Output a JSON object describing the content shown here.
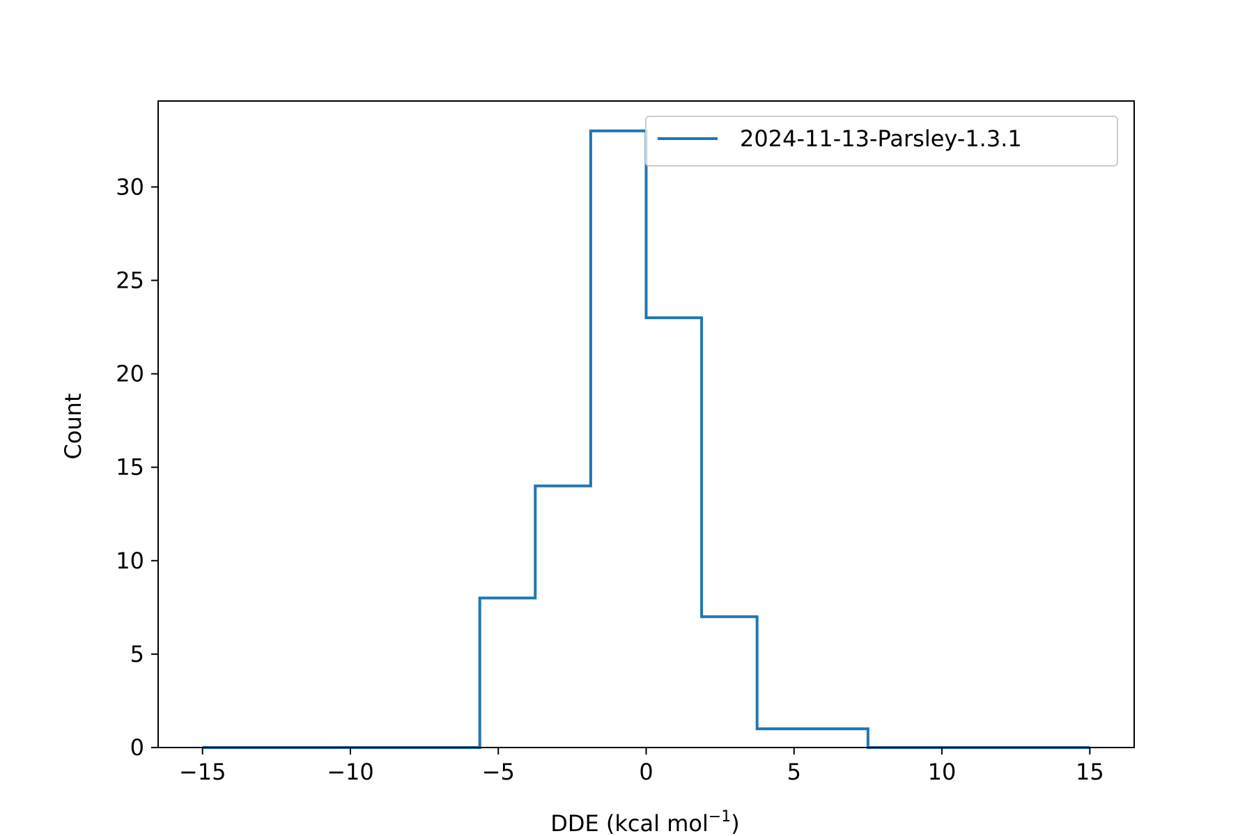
{
  "chart_data": {
    "type": "step",
    "title": "",
    "xlabel": "DDE (kcal mol",
    "xlabel_sup": "−1",
    "xlabel_tail": ")",
    "ylabel": "Count",
    "xlim": [
      -16.5,
      16.5
    ],
    "ylim": [
      0,
      34.6
    ],
    "xticks": [
      -15,
      -10,
      -5,
      0,
      5,
      10,
      15
    ],
    "xtick_labels": [
      "−15",
      "−10",
      "−5",
      "0",
      "5",
      "10",
      "15"
    ],
    "yticks": [
      0,
      5,
      10,
      15,
      20,
      25,
      30
    ],
    "ytick_labels": [
      "0",
      "5",
      "10",
      "15",
      "20",
      "25",
      "30"
    ],
    "grid": false,
    "legend_position": "top-right",
    "series": [
      {
        "name": "2024-11-13-Parsley-1.3.1",
        "color": "#1f77b4",
        "bin_edges": [
          -15,
          -13.125,
          -11.25,
          -9.375,
          -7.5,
          -5.625,
          -3.75,
          -1.875,
          0,
          1.875,
          3.75,
          5.625,
          7.5,
          9.375,
          11.25,
          13.125,
          15
        ],
        "counts": [
          0,
          0,
          0,
          0,
          0,
          8,
          14,
          33,
          23,
          7,
          1,
          1,
          0,
          0,
          0,
          0
        ]
      }
    ]
  }
}
